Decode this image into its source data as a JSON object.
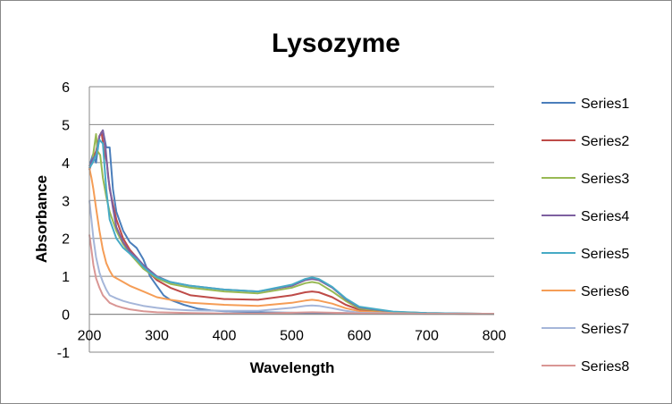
{
  "chart_data": {
    "type": "line",
    "title": "Lysozyme",
    "xlabel": "Wavelength",
    "ylabel": "Absorbance",
    "xlim": [
      200,
      800
    ],
    "ylim": [
      -1,
      6
    ],
    "x_ticks": [
      200,
      300,
      400,
      500,
      600,
      700,
      800
    ],
    "y_ticks": [
      -1,
      0,
      1,
      2,
      3,
      4,
      5,
      6
    ],
    "x_tick_labels": [
      "200",
      "300",
      "400",
      "500",
      "600",
      "700",
      "800"
    ],
    "y_tick_labels": [
      "-1",
      "0",
      "1",
      "2",
      "3",
      "4",
      "5",
      "6"
    ],
    "grid": "horizontal",
    "legend_position": "right",
    "series": [
      {
        "name": "Series1",
        "color": "#4A7EBB",
        "x": [
          200,
          205,
          210,
          215,
          220,
          225,
          230,
          235,
          240,
          250,
          260,
          270,
          280,
          290,
          300,
          310,
          320,
          340,
          360,
          380,
          400,
          450,
          500,
          520,
          530,
          540,
          560,
          580,
          600,
          650,
          700,
          750,
          800
        ],
        "y": [
          3.9,
          4.2,
          4.0,
          4.7,
          4.85,
          4.4,
          4.4,
          3.3,
          2.7,
          2.2,
          1.9,
          1.75,
          1.45,
          1.0,
          0.75,
          0.5,
          0.38,
          0.25,
          0.15,
          0.1,
          0.08,
          0.05,
          0.04,
          0.03,
          0.03,
          0.03,
          0.03,
          0.03,
          0.02,
          0.02,
          0.02,
          0.01,
          0.01
        ]
      },
      {
        "name": "Series2",
        "color": "#BE4B48",
        "x": [
          200,
          205,
          210,
          215,
          218,
          222,
          226,
          230,
          240,
          250,
          260,
          270,
          280,
          300,
          320,
          350,
          400,
          450,
          500,
          520,
          530,
          540,
          560,
          580,
          600,
          650,
          700,
          750,
          800
        ],
        "y": [
          3.8,
          4.1,
          4.3,
          4.7,
          4.8,
          4.3,
          4.0,
          3.3,
          2.5,
          2.0,
          1.7,
          1.5,
          1.25,
          0.9,
          0.7,
          0.5,
          0.4,
          0.38,
          0.5,
          0.58,
          0.6,
          0.58,
          0.45,
          0.25,
          0.12,
          0.05,
          0.02,
          0.01,
          0.01
        ]
      },
      {
        "name": "Series3",
        "color": "#98B954",
        "x": [
          200,
          204,
          208,
          210,
          212,
          216,
          220,
          225,
          230,
          240,
          250,
          260,
          270,
          280,
          300,
          320,
          350,
          400,
          450,
          500,
          520,
          530,
          540,
          560,
          580,
          600,
          650,
          700,
          750,
          800
        ],
        "y": [
          3.9,
          4.0,
          4.5,
          4.75,
          4.3,
          4.2,
          3.6,
          3.1,
          2.7,
          2.2,
          1.85,
          1.6,
          1.4,
          1.2,
          0.95,
          0.8,
          0.7,
          0.6,
          0.55,
          0.7,
          0.82,
          0.85,
          0.82,
          0.6,
          0.35,
          0.15,
          0.06,
          0.03,
          0.02,
          0.01
        ]
      },
      {
        "name": "Series4",
        "color": "#7D60A0",
        "x": [
          200,
          205,
          210,
          215,
          220,
          224,
          228,
          235,
          240,
          250,
          260,
          270,
          280,
          300,
          320,
          350,
          400,
          450,
          500,
          520,
          530,
          540,
          560,
          580,
          600,
          650,
          700,
          750,
          800
        ],
        "y": [
          3.85,
          4.1,
          4.2,
          4.7,
          4.85,
          4.4,
          3.6,
          2.8,
          2.3,
          1.9,
          1.65,
          1.5,
          1.3,
          1.0,
          0.85,
          0.75,
          0.65,
          0.6,
          0.75,
          0.9,
          0.93,
          0.9,
          0.7,
          0.4,
          0.18,
          0.06,
          0.03,
          0.02,
          0.01
        ]
      },
      {
        "name": "Series5",
        "color": "#46AAC5",
        "x": [
          200,
          205,
          210,
          215,
          220,
          225,
          230,
          240,
          250,
          260,
          270,
          280,
          290,
          300,
          320,
          350,
          400,
          450,
          500,
          520,
          530,
          540,
          560,
          580,
          600,
          650,
          700,
          750,
          800
        ],
        "y": [
          3.85,
          4.0,
          4.2,
          4.6,
          4.5,
          3.3,
          2.5,
          2.0,
          1.75,
          1.6,
          1.45,
          1.25,
          1.1,
          0.98,
          0.85,
          0.75,
          0.65,
          0.6,
          0.78,
          0.93,
          0.97,
          0.93,
          0.72,
          0.42,
          0.2,
          0.07,
          0.03,
          0.02,
          0.01
        ]
      },
      {
        "name": "Series6",
        "color": "#F59D56",
        "x": [
          200,
          203,
          206,
          210,
          215,
          220,
          225,
          230,
          235,
          240,
          250,
          260,
          280,
          300,
          320,
          350,
          400,
          450,
          500,
          520,
          530,
          540,
          560,
          580,
          600,
          650,
          700,
          750,
          800
        ],
        "y": [
          3.85,
          3.6,
          3.3,
          2.8,
          2.2,
          1.7,
          1.35,
          1.15,
          1.0,
          0.95,
          0.85,
          0.75,
          0.6,
          0.45,
          0.38,
          0.3,
          0.25,
          0.22,
          0.3,
          0.36,
          0.38,
          0.36,
          0.28,
          0.16,
          0.08,
          0.03,
          0.01,
          0.01,
          0.01
        ]
      },
      {
        "name": "Series7",
        "color": "#A5B6D9",
        "x": [
          200,
          203,
          206,
          210,
          215,
          220,
          225,
          230,
          240,
          250,
          260,
          280,
          300,
          320,
          350,
          400,
          450,
          500,
          520,
          530,
          540,
          560,
          580,
          600,
          650,
          700,
          750,
          800
        ],
        "y": [
          3.0,
          2.5,
          2.0,
          1.5,
          1.1,
          0.85,
          0.65,
          0.5,
          0.42,
          0.35,
          0.3,
          0.22,
          0.17,
          0.13,
          0.1,
          0.09,
          0.09,
          0.17,
          0.22,
          0.23,
          0.22,
          0.16,
          0.09,
          0.04,
          0.02,
          0.01,
          0.01,
          0.01
        ]
      },
      {
        "name": "Series8",
        "color": "#D99694",
        "x": [
          200,
          203,
          206,
          210,
          215,
          220,
          225,
          230,
          240,
          250,
          260,
          280,
          300,
          350,
          400,
          450,
          500,
          530,
          560,
          600,
          650,
          700,
          800
        ],
        "y": [
          2.1,
          1.7,
          1.3,
          0.95,
          0.7,
          0.5,
          0.4,
          0.3,
          0.22,
          0.17,
          0.13,
          0.08,
          0.05,
          0.03,
          0.02,
          0.02,
          0.04,
          0.05,
          0.04,
          0.02,
          0.01,
          0.01,
          0.01
        ]
      }
    ]
  }
}
